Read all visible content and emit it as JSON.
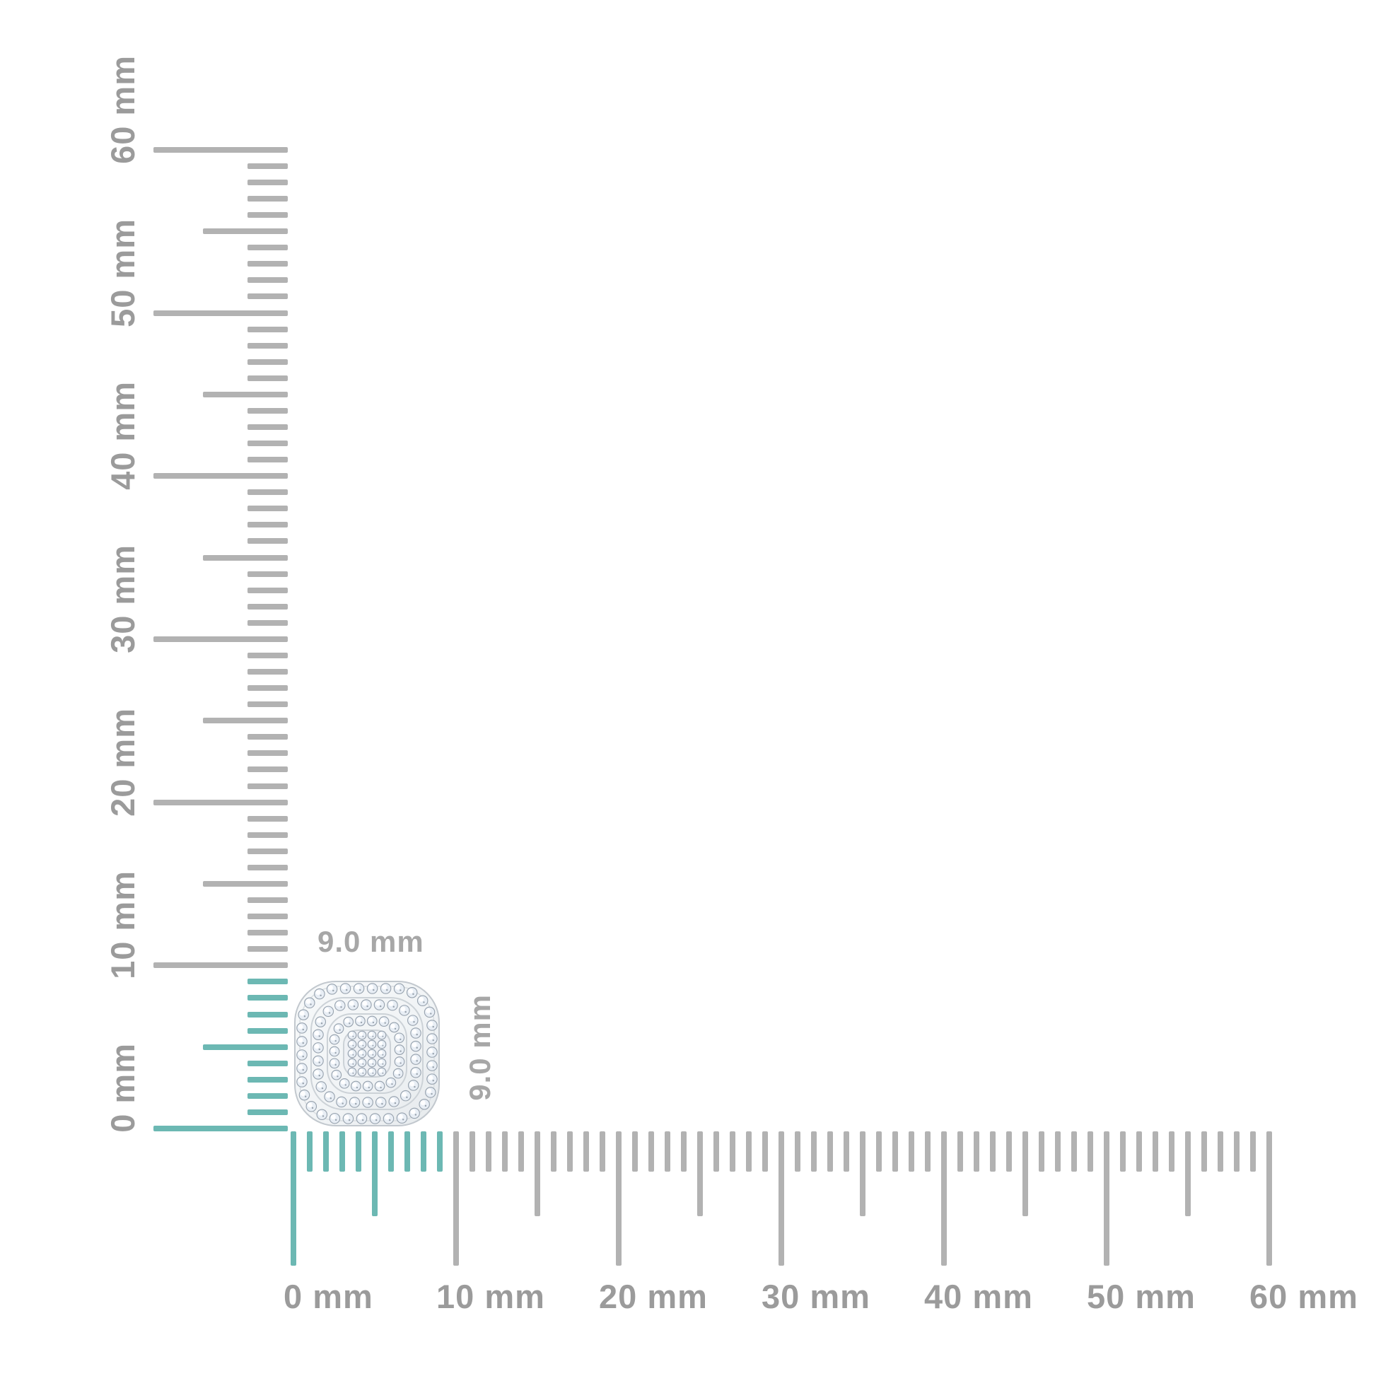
{
  "figure": {
    "background_color": "#ffffff",
    "rulers": {
      "unit": "mm",
      "min_mm": 0,
      "max_mm": 60,
      "minor_step_mm": 1,
      "mid_step_mm": 5,
      "major_step_mm": 10,
      "major_labels": [
        "0 mm",
        "10 mm",
        "20 mm",
        "30 mm",
        "40 mm",
        "50 mm",
        "60 mm"
      ],
      "highlight_range_mm": [
        0,
        9
      ],
      "tick_color": "#b2b2b2",
      "highlight_color": "#6cb8b3",
      "label_color": "#9b9b9b"
    },
    "item": {
      "name": "cushion shaped pave diamond cluster stud",
      "width_label": "9.0 mm",
      "height_label": "9.0 mm",
      "width_mm": 9.0,
      "height_mm": 9.0,
      "dimension_label_color": "#a7a7a7",
      "metal_color": "#f3f5f7",
      "metal_edge_color": "#c2c8ce",
      "channel_color": "#ccd2d7",
      "stone_fill_color": "#e8eef5",
      "stone_edge_color": "#96a1ad"
    }
  }
}
